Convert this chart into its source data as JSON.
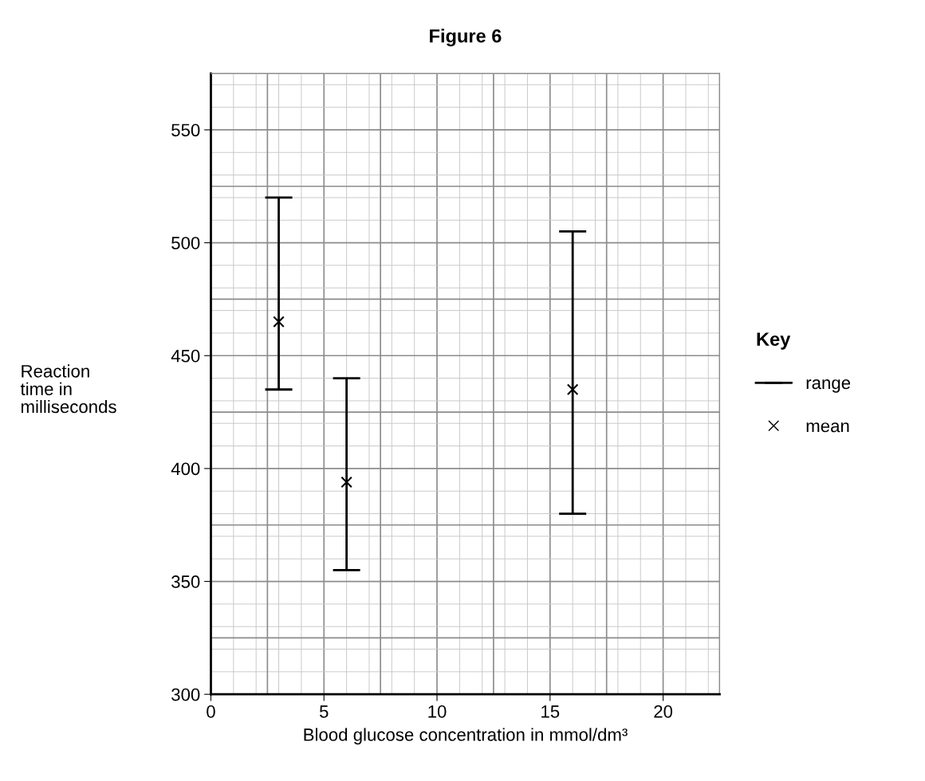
{
  "chart_data": {
    "type": "scatter",
    "title": "Figure 6",
    "xlabel": "Blood glucose concentration in mmol/dm³",
    "ylabel": "Reaction\ntime in\nmilliseconds",
    "legend_title": "Key",
    "x": [
      3,
      6,
      16
    ],
    "series": [
      {
        "name": "mean",
        "color": "#000000",
        "values": [
          465,
          394,
          435
        ],
        "errors": [
          [
            435,
            520
          ],
          [
            355,
            440
          ],
          [
            380,
            505
          ]
        ]
      }
    ],
    "annotations": [
      "range"
    ],
    "xlim": [
      0,
      22.5
    ],
    "xticks": [
      0,
      5,
      10,
      15,
      20
    ],
    "ylim": [
      300,
      575
    ],
    "yticks": [
      300,
      350,
      400,
      450,
      500,
      550
    ],
    "marker": "cross",
    "grid": true,
    "legend": "right"
  }
}
